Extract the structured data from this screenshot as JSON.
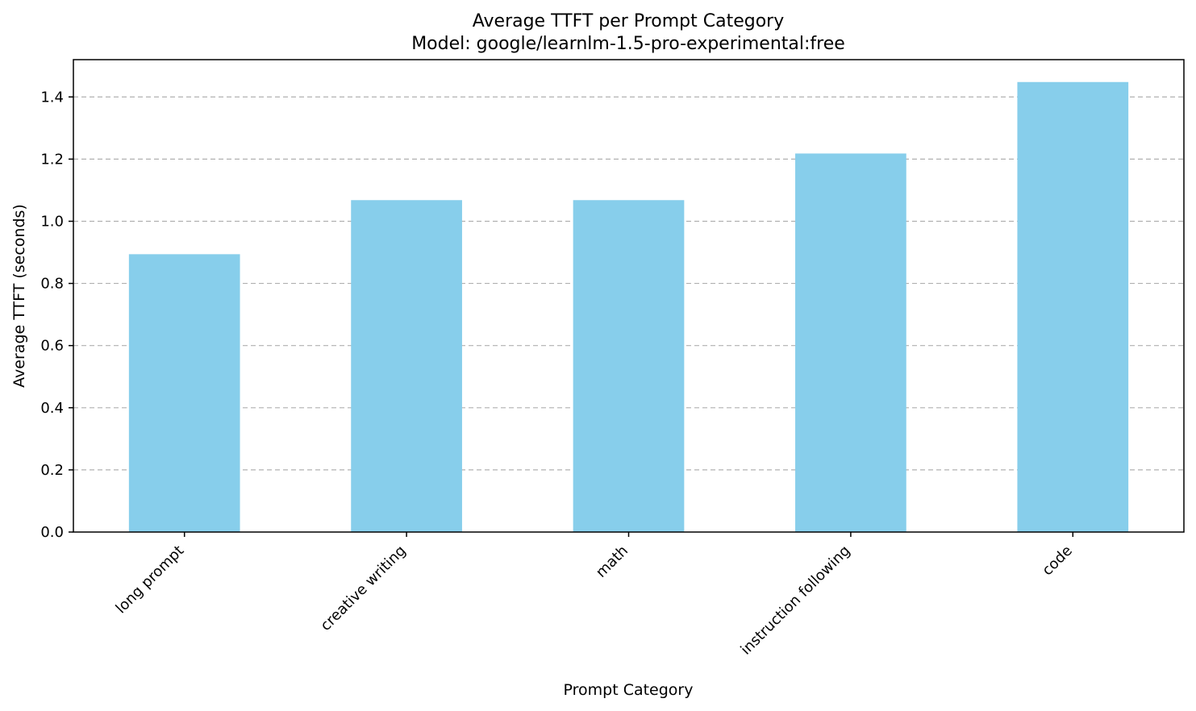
{
  "chart_data": {
    "type": "bar",
    "title": "Average TTFT per Prompt Category",
    "subtitle": "Model: google/learnlm-1.5-pro-experimental:free",
    "xlabel": "Prompt Category",
    "ylabel": "Average TTFT (seconds)",
    "categories": [
      "long prompt",
      "creative writing",
      "math",
      "instruction following",
      "code"
    ],
    "values": [
      0.894,
      1.068,
      1.068,
      1.218,
      1.448
    ],
    "ylim": [
      0,
      1.52
    ],
    "yticks": [
      "0.0",
      "0.2",
      "0.4",
      "0.6",
      "0.8",
      "1.0",
      "1.2",
      "1.4"
    ],
    "ytick_values": [
      0,
      0.2,
      0.4,
      0.6,
      0.8,
      1.0,
      1.2,
      1.4
    ],
    "grid": "y-dashed",
    "legend": "none",
    "bar_color": "#87ceeb",
    "grid_color": "#b0b0b0"
  }
}
